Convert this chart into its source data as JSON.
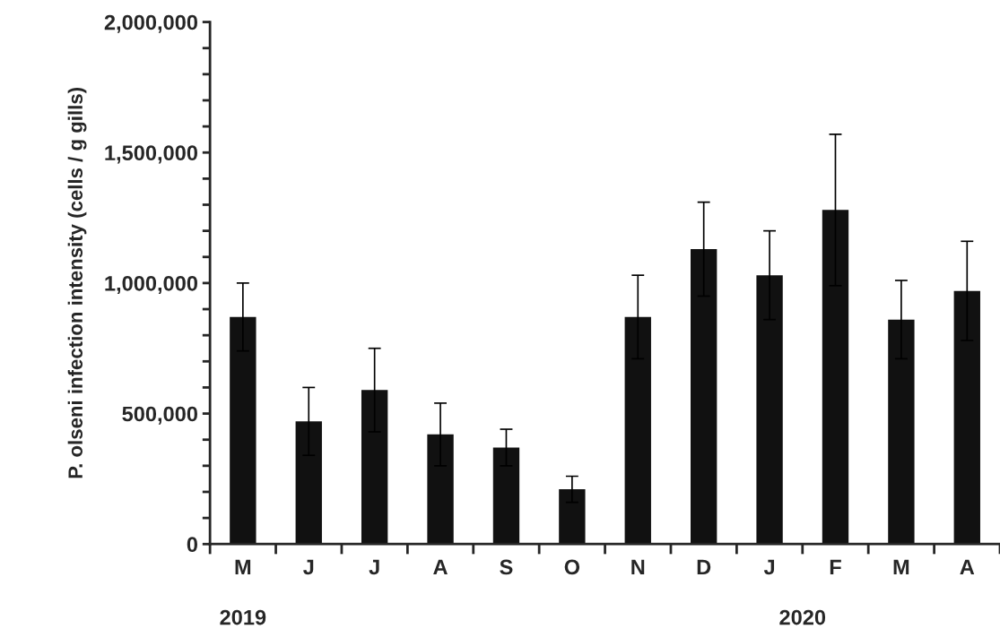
{
  "chart_data": {
    "type": "bar",
    "ylabel": "P. olseni infection intensity (cells / g gills)",
    "categories": [
      "M",
      "J",
      "J",
      "A",
      "S",
      "O",
      "N",
      "D",
      "J",
      "F",
      "M",
      "A"
    ],
    "values": [
      870000,
      470000,
      590000,
      420000,
      370000,
      210000,
      870000,
      1130000,
      1030000,
      1280000,
      860000,
      970000
    ],
    "errors": [
      130000,
      130000,
      160000,
      120000,
      70000,
      50000,
      160000,
      180000,
      170000,
      290000,
      150000,
      190000
    ],
    "color": "#111111",
    "ylim": [
      0,
      2000000
    ],
    "yticks": [
      {
        "value": 0,
        "label": "0"
      },
      {
        "value": 100000,
        "label": null
      },
      {
        "value": 200000,
        "label": null
      },
      {
        "value": 300000,
        "label": null
      },
      {
        "value": 400000,
        "label": null
      },
      {
        "value": 500000,
        "label": "500,000"
      },
      {
        "value": 600000,
        "label": null
      },
      {
        "value": 700000,
        "label": null
      },
      {
        "value": 800000,
        "label": null
      },
      {
        "value": 900000,
        "label": null
      },
      {
        "value": 1000000,
        "label": "1,000,000"
      },
      {
        "value": 1100000,
        "label": null
      },
      {
        "value": 1200000,
        "label": null
      },
      {
        "value": 1300000,
        "label": null
      },
      {
        "value": 1400000,
        "label": null
      },
      {
        "value": 1500000,
        "label": "1,500,000"
      },
      {
        "value": 1600000,
        "label": null
      },
      {
        "value": 1700000,
        "label": null
      },
      {
        "value": 1800000,
        "label": null
      },
      {
        "value": 1900000,
        "label": null
      },
      {
        "value": 2000000,
        "label": "2,000,000"
      }
    ],
    "annotations": [
      "2019",
      "2020"
    ]
  }
}
